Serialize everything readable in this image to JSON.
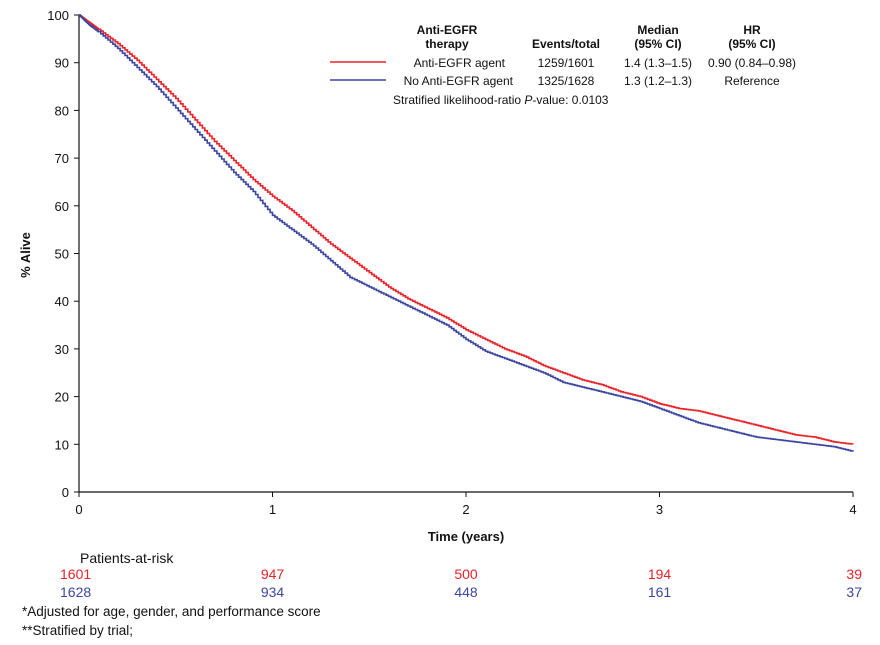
{
  "chart_data": {
    "type": "line",
    "xlabel": "Time (years)",
    "ylabel": "% Alive",
    "xlim": [
      0,
      4
    ],
    "ylim": [
      0,
      100
    ],
    "xticks": [
      "0",
      "1",
      "2",
      "3",
      "4"
    ],
    "yticks": [
      "0",
      "10",
      "20",
      "30",
      "40",
      "50",
      "60",
      "70",
      "80",
      "90",
      "100"
    ],
    "grid": false,
    "legend_position": "top-right",
    "legend_headers": {
      "therapy": [
        "Anti-EGFR",
        "therapy"
      ],
      "events": "Events/total",
      "median": [
        "Median",
        "(95% CI)"
      ],
      "hr": [
        "HR",
        "(95% CI)"
      ]
    },
    "series": [
      {
        "name": "Anti-EGFR agent",
        "color": "#e8232a",
        "events_total": "1259/1601",
        "median": "1.4 (1.3–1.5)",
        "hr": "0.90 (0.84–0.98)",
        "x": [
          0,
          0.05,
          0.1,
          0.2,
          0.3,
          0.4,
          0.5,
          0.6,
          0.7,
          0.8,
          0.9,
          1.0,
          1.1,
          1.2,
          1.3,
          1.4,
          1.5,
          1.6,
          1.7,
          1.8,
          1.9,
          2.0,
          2.1,
          2.2,
          2.3,
          2.4,
          2.5,
          2.6,
          2.7,
          2.8,
          2.9,
          3.0,
          3.1,
          3.2,
          3.3,
          3.4,
          3.5,
          3.6,
          3.7,
          3.8,
          3.9,
          4.0
        ],
        "y": [
          100,
          98.5,
          97,
          94,
          90.5,
          86.5,
          82.5,
          78,
          73.5,
          69.5,
          65.5,
          62,
          59,
          55.5,
          52,
          49,
          46,
          43,
          40.5,
          38.5,
          36.5,
          34,
          32,
          30,
          28.5,
          26.5,
          25,
          23.5,
          22.5,
          21,
          20,
          18.5,
          17.5,
          17,
          16,
          15,
          14,
          13,
          12,
          11.5,
          10.5,
          10
        ]
      },
      {
        "name": "No Anti-EGFR agent",
        "color": "#3c46a0",
        "events_total": "1325/1628",
        "median": "1.3 (1.2–1.3)",
        "hr": "Reference",
        "x": [
          0,
          0.05,
          0.1,
          0.2,
          0.3,
          0.4,
          0.5,
          0.6,
          0.7,
          0.8,
          0.9,
          1.0,
          1.1,
          1.2,
          1.3,
          1.4,
          1.5,
          1.6,
          1.7,
          1.8,
          1.9,
          2.0,
          2.1,
          2.2,
          2.3,
          2.4,
          2.5,
          2.6,
          2.7,
          2.8,
          2.9,
          3.0,
          3.1,
          3.2,
          3.3,
          3.4,
          3.5,
          3.6,
          3.7,
          3.8,
          3.9,
          4.0
        ],
        "y": [
          100,
          98,
          96.5,
          93,
          89,
          85,
          80.5,
          76,
          71.5,
          67,
          63,
          58,
          55,
          52,
          48.5,
          45,
          43,
          41,
          39,
          37,
          35,
          32,
          29.5,
          28,
          26.5,
          25,
          23,
          22,
          21,
          20,
          19,
          17.5,
          16,
          14.5,
          13.5,
          12.5,
          11.5,
          11,
          10.5,
          10,
          9.5,
          8.5
        ]
      }
    ],
    "pvalue": {
      "prefix": "Stratified likelihood-ratio ",
      "label": "P",
      "suffix": "-value: 0.0103"
    }
  },
  "risk_table": {
    "title": "Patients-at-risk",
    "rows": [
      {
        "color": "#e8232a",
        "values": [
          "1601",
          "947",
          "500",
          "194",
          "39"
        ]
      },
      {
        "color": "#3c46a0",
        "values": [
          "1628",
          "934",
          "448",
          "161",
          "37"
        ]
      }
    ]
  },
  "footnotes": [
    "*Adjusted for age, gender, and performance score",
    "**Stratified by trial;"
  ]
}
